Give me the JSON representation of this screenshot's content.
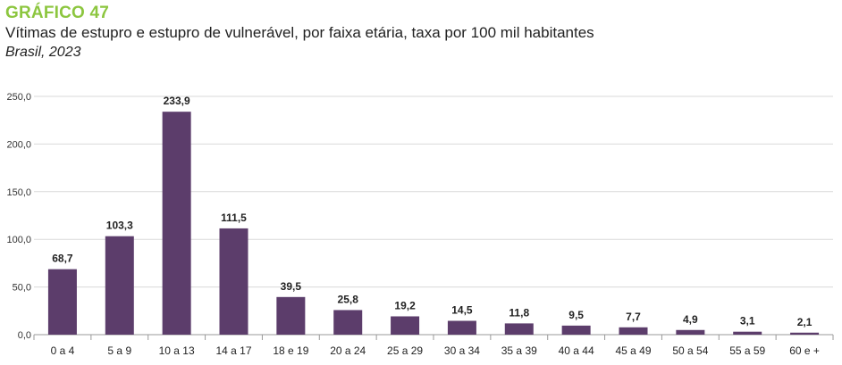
{
  "figure": {
    "label": "GRÁFICO 47",
    "title": "Vítimas de estupro e estupro de vulnerável, por faixa etária, taxa por 100 mil habitantes",
    "subtitle": "Brasil, 2023",
    "bar_color": "#5c3d6b"
  },
  "chart_data": {
    "type": "bar",
    "categories": [
      "0 a 4",
      "5 a 9",
      "10 a 13",
      "14 a 17",
      "18 e 19",
      "20 a 24",
      "25 a 29",
      "30 a 34",
      "35 a 39",
      "40 a 44",
      "45 a 49",
      "50 a 54",
      "55 a 59",
      "60 e +"
    ],
    "values": [
      68.7,
      103.3,
      233.9,
      111.5,
      39.5,
      25.8,
      19.2,
      14.5,
      11.8,
      9.5,
      7.7,
      4.9,
      3.1,
      2.1
    ],
    "value_labels": [
      "68,7",
      "103,3",
      "233,9",
      "111,5",
      "39,5",
      "25,8",
      "19,2",
      "14,5",
      "11,8",
      "9,5",
      "7,7",
      "4,9",
      "3,1",
      "2,1"
    ],
    "yticks": [
      0,
      50,
      100,
      150,
      200,
      250
    ],
    "ytick_labels": [
      "0,0",
      "50,0",
      "100,0",
      "150,0",
      "200,0",
      "250,0"
    ],
    "ylim": [
      0,
      250
    ],
    "grid": true,
    "legend": "none"
  }
}
